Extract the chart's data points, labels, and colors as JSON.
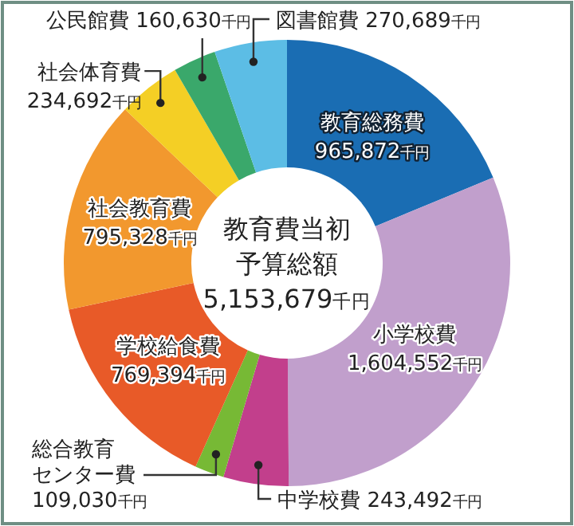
{
  "chart_data": {
    "type": "donut",
    "title": "教育費当初予算総額",
    "subtitle": "5,153,679千円",
    "categories": [
      "教育総務費",
      "小学校費",
      "中学校費",
      "総合教育センター費",
      "学校給食費",
      "社会教育費",
      "社会体育費",
      "公民館費",
      "図書館費"
    ],
    "values": [
      965872,
      1604552,
      243492,
      109030,
      769394,
      795328,
      234692,
      160630,
      270689
    ],
    "value_labels": [
      "965,872千円",
      "1,604,552千円",
      "243,492千円",
      "109,030千円",
      "769,394千円",
      "795,328千円",
      "234,692千円",
      "160,630千円",
      "270,689千円"
    ],
    "colors": [
      "#1a6db3",
      "#c19fcc",
      "#c23f8c",
      "#77b935",
      "#e85a28",
      "#f2982e",
      "#f4cf25",
      "#3aa86b",
      "#5cbde5"
    ]
  }
}
